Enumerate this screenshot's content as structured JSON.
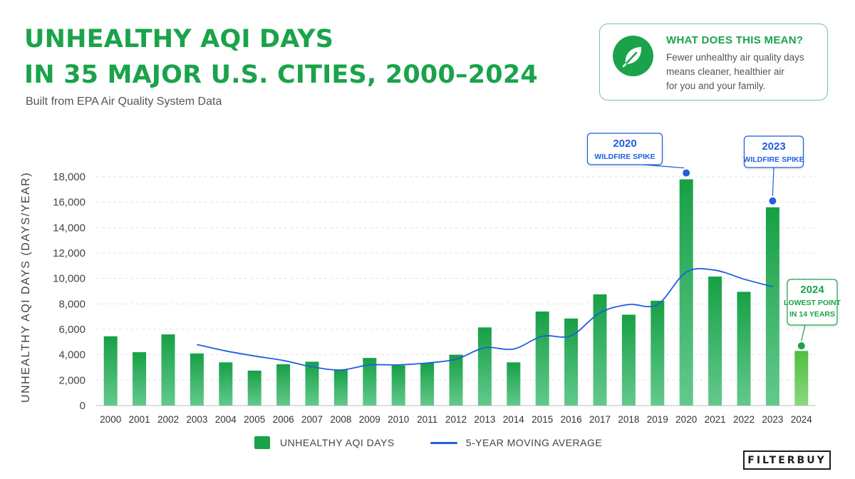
{
  "header": {
    "title_line1": "UNHEALTHY AQI DAYS",
    "title_line2": "IN 35 MAJOR U.S. CITIES, 2000–2024",
    "subtitle": "Built from EPA Air Quality System Data"
  },
  "info_card": {
    "icon": "leaf-icon",
    "heading": "WHAT DOES THIS MEAN?",
    "body_lines": [
      "Fewer unhealthy air quality days",
      "means cleaner, healthier air",
      "for you and your family."
    ]
  },
  "brand": {
    "logo_text": "FILTERBUY"
  },
  "colors": {
    "accent_green": "#1aa34a",
    "bar_highlight": "#4cbf3d",
    "moving_average": "#1f5fdd",
    "annotation_blue": "#1f5fdd",
    "annotation_green": "#1aa34a"
  },
  "chart_data": {
    "type": "bar",
    "title": "UNHEALTHY AQI DAYS IN 35 MAJOR U.S. CITIES, 2000–2024",
    "ylabel": "UNHEALTHY AQI DAYS  (DAYS/YEAR)",
    "xlabel": "",
    "ylim": [
      0,
      18000
    ],
    "yticks": [
      0,
      2000,
      4000,
      6000,
      8000,
      10000,
      12000,
      14000,
      16000,
      18000
    ],
    "ytick_labels": [
      "0",
      "2,000",
      "4,000",
      "6,000",
      "8,000",
      "10,000",
      "12,000",
      "14,000",
      "16,000",
      "18,000"
    ],
    "grid": "horizontal dashed",
    "legend_position": "bottom-center",
    "categories": [
      "2000",
      "2001",
      "2002",
      "2003",
      "2004",
      "2005",
      "2006",
      "2007",
      "2008",
      "2009",
      "2010",
      "2011",
      "2012",
      "2013",
      "2014",
      "2015",
      "2016",
      "2017",
      "2018",
      "2019",
      "2020",
      "2021",
      "2022",
      "2023",
      "2024"
    ],
    "series": [
      {
        "name": "UNHEALTHY AQI DAYS",
        "type": "bar",
        "values": [
          5450,
          4200,
          5600,
          4100,
          3400,
          2750,
          3250,
          3450,
          2800,
          3750,
          3150,
          3350,
          4000,
          6150,
          3400,
          7400,
          6850,
          8750,
          7150,
          8250,
          17800,
          10150,
          8950,
          15600,
          4300
        ],
        "highlight_category": "2024"
      },
      {
        "name": "5-YEAR MOVING AVERAGE",
        "type": "line",
        "x": [
          "2003",
          "2004",
          "2005",
          "2006",
          "2007",
          "2008",
          "2009",
          "2010",
          "2011",
          "2012",
          "2013",
          "2014",
          "2015",
          "2016",
          "2017",
          "2018",
          "2019",
          "2020",
          "2021",
          "2022",
          "2023"
        ],
        "values": [
          4800,
          4300,
          3900,
          3550,
          3050,
          2800,
          3200,
          3200,
          3350,
          3650,
          4550,
          4450,
          5450,
          5500,
          7300,
          7950,
          7950,
          10500,
          10650,
          9950,
          9350
        ]
      }
    ],
    "annotations": [
      {
        "year": "2020",
        "value": 18300,
        "color": "blue",
        "heading": "2020",
        "text": "WILDFIRE SPIKE"
      },
      {
        "year": "2023",
        "value": 16100,
        "color": "blue",
        "heading": "2023",
        "text": "WILDFIRE SPIKE"
      },
      {
        "year": "2024",
        "value": 4700,
        "color": "green",
        "heading": "2024",
        "text_lines": [
          "LOWEST POINT",
          "IN 14 YEARS"
        ]
      }
    ]
  }
}
